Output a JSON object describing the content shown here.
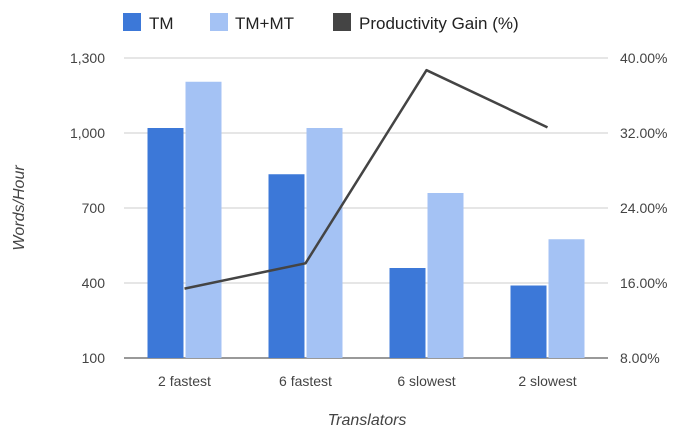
{
  "chart_data": {
    "type": "bar",
    "categories": [
      "2 fastest",
      "6 fastest",
      "6 slowest",
      "2 slowest"
    ],
    "series": [
      {
        "name": "TM",
        "type": "bar",
        "axis": "left",
        "color": "#3c78d8",
        "values": [
          1020,
          835,
          460,
          390
        ]
      },
      {
        "name": "TM+MT",
        "type": "bar",
        "axis": "left",
        "color": "#a4c2f4",
        "values": [
          1205,
          1020,
          760,
          575
        ]
      },
      {
        "name": "Productivity Gain (%)",
        "type": "line",
        "axis": "right",
        "color": "#444444",
        "values": [
          15.4,
          18.1,
          38.7,
          32.6
        ]
      }
    ],
    "xlabel": "Translators",
    "ylabel": "Words/Hour",
    "ylim": [
      100,
      1300
    ],
    "yticks": [
      "100",
      "400",
      "700",
      "1,000",
      "1,300"
    ],
    "y2lim": [
      8,
      40
    ],
    "y2ticks": [
      "8.00%",
      "16.00%",
      "24.00%",
      "32.00%",
      "40.00%"
    ],
    "legend_position": "top",
    "grid": true
  }
}
